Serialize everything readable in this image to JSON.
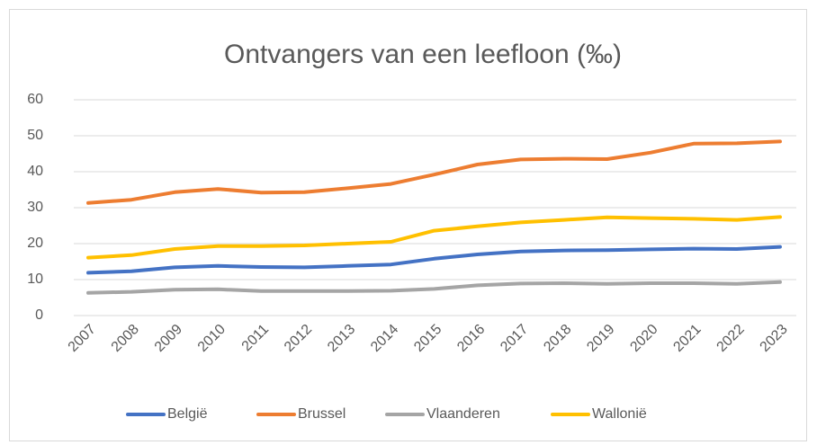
{
  "chart_data": {
    "type": "line",
    "title": "Ontvangers van een leefloon (‰)",
    "categories": [
      "2007",
      "2008",
      "2009",
      "2010",
      "2011",
      "2012",
      "2013",
      "2014",
      "2015",
      "2016",
      "2017",
      "2018",
      "2019",
      "2020",
      "2021",
      "2022",
      "2023"
    ],
    "series": [
      {
        "name": "België",
        "color": "#4472c4",
        "values": [
          11.9,
          12.3,
          13.4,
          13.8,
          13.5,
          13.4,
          13.8,
          14.2,
          15.8,
          17.0,
          17.8,
          18.1,
          18.2,
          18.4,
          18.6,
          18.5,
          19.1
        ]
      },
      {
        "name": "Brussel",
        "color": "#ed7d31",
        "values": [
          31.3,
          32.2,
          34.3,
          35.2,
          34.2,
          34.3,
          35.4,
          36.6,
          39.2,
          42.0,
          43.4,
          43.6,
          43.5,
          45.3,
          47.8,
          47.9,
          48.4
        ]
      },
      {
        "name": "Vlaanderen",
        "color": "#a5a5a5",
        "values": [
          6.3,
          6.6,
          7.2,
          7.3,
          6.8,
          6.8,
          6.8,
          6.9,
          7.4,
          8.4,
          8.9,
          9.0,
          8.8,
          9.0,
          9.0,
          8.8,
          9.3
        ]
      },
      {
        "name": "Wallonië",
        "color": "#ffc000",
        "values": [
          16.1,
          16.8,
          18.5,
          19.3,
          19.3,
          19.5,
          20.0,
          20.5,
          23.6,
          24.8,
          25.9,
          26.6,
          27.3,
          27.1,
          26.9,
          26.6,
          27.4
        ]
      }
    ],
    "ylim": [
      0,
      60
    ],
    "yticks": [
      0,
      10,
      20,
      30,
      40,
      50,
      60
    ],
    "grid": true,
    "legend": "bottom"
  }
}
